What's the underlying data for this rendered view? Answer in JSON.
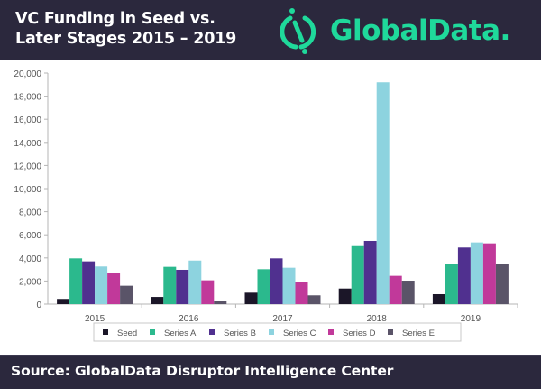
{
  "header": {
    "title_line1": "VC Funding in Seed vs.",
    "title_line2": "Later Stages 2015 – 2019",
    "logo_icon": "globaldata-logo-icon",
    "logo_text": "GlobalData."
  },
  "colors": {
    "header_bg": "#2b283d",
    "logo": "#1fd99b",
    "Seed": "#1b1628",
    "Series A": "#2bb98d",
    "Series B": "#50308f",
    "Series C": "#8dd3df",
    "Series D": "#c1399a",
    "Series E": "#5a5468"
  },
  "chart_data": {
    "type": "bar",
    "title": "VC Funding in Seed vs. Later Stages 2015 – 2019",
    "xlabel": "",
    "ylabel": "",
    "categories": [
      "2015",
      "2016",
      "2017",
      "2018",
      "2019"
    ],
    "ylim": [
      0,
      20000
    ],
    "yticks": [
      0,
      2000,
      4000,
      6000,
      8000,
      10000,
      12000,
      14000,
      16000,
      18000,
      20000
    ],
    "ytick_labels": [
      "0",
      "2,000",
      "4,000",
      "6,000",
      "8,000",
      "10,000",
      "12,000",
      "14,000",
      "16,000",
      "18,000",
      "20,000"
    ],
    "grid": false,
    "legend_position": "bottom",
    "series": [
      {
        "name": "Seed",
        "values": [
          450,
          620,
          990,
          1350,
          860
        ]
      },
      {
        "name": "Series A",
        "values": [
          3960,
          3230,
          3020,
          5020,
          3490
        ]
      },
      {
        "name": "Series B",
        "values": [
          3700,
          2970,
          3960,
          5470,
          4900
        ]
      },
      {
        "name": "Series C",
        "values": [
          3260,
          3770,
          3150,
          19200,
          5340
        ]
      },
      {
        "name": "Series D",
        "values": [
          2710,
          2060,
          1930,
          2450,
          5260
        ]
      },
      {
        "name": "Series E",
        "values": [
          1590,
          310,
          760,
          2030,
          3490
        ]
      }
    ]
  },
  "footer": {
    "source": "Source: GlobalData Disruptor Intelligence Center"
  }
}
